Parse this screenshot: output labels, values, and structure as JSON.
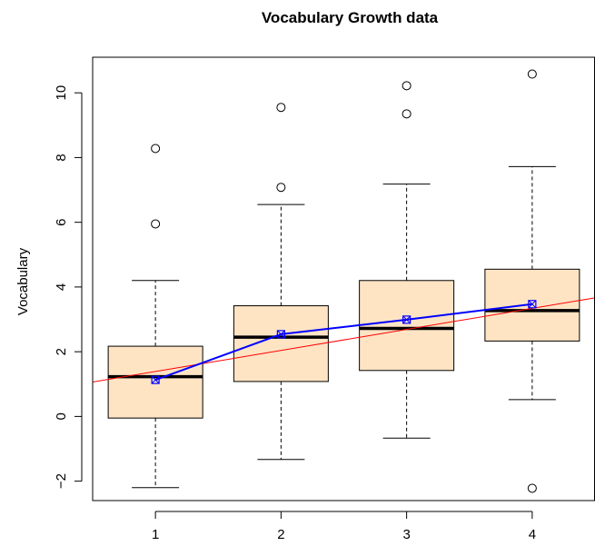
{
  "chart_data": {
    "type": "boxplot",
    "title": "Vocabulary Growth data",
    "xlabel": "",
    "ylabel": "Vocabulary",
    "categories": [
      "1",
      "2",
      "3",
      "4"
    ],
    "y_ticks": [
      "−2",
      "0",
      "2",
      "4",
      "6",
      "8",
      "10"
    ],
    "y_tick_values": [
      -2,
      0,
      2,
      4,
      6,
      8,
      10
    ],
    "ylim": [
      -2.6,
      11.1
    ],
    "xlim": [
      0.5,
      4.5
    ],
    "boxes": [
      {
        "category": "1",
        "whisker_low": -2.2,
        "q1": -0.05,
        "median": 1.23,
        "q3": 2.17,
        "whisker_high": 4.2,
        "outliers": [
          5.95,
          8.28
        ]
      },
      {
        "category": "2",
        "whisker_low": -1.33,
        "q1": 1.08,
        "median": 2.45,
        "q3": 3.42,
        "whisker_high": 6.55,
        "outliers": [
          7.08,
          9.55
        ]
      },
      {
        "category": "3",
        "whisker_low": -0.67,
        "q1": 1.42,
        "median": 2.72,
        "q3": 4.2,
        "whisker_high": 7.18,
        "outliers": [
          9.35,
          10.22
        ]
      },
      {
        "category": "4",
        "whisker_low": 0.52,
        "q1": 2.33,
        "median": 3.27,
        "q3": 4.55,
        "whisker_high": 7.72,
        "outliers": [
          -2.22,
          10.58
        ]
      }
    ],
    "means": {
      "name": "mean",
      "x": [
        1,
        2,
        3,
        4
      ],
      "values": [
        1.13,
        2.54,
        2.99,
        3.47
      ]
    },
    "regression_line": {
      "intercept": 0.74,
      "slope": 0.65
    },
    "grid": false,
    "colors": {
      "box_fill": "#FFE4C4",
      "box_stroke": "#000000",
      "mean_line": "#0000FF",
      "regression_line": "#FF0000"
    }
  }
}
